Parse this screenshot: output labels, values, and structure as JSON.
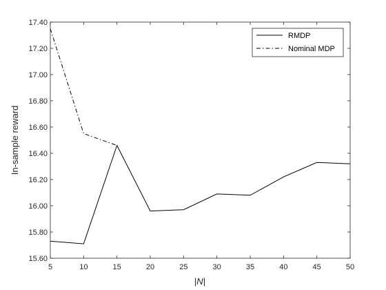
{
  "chart_data": {
    "type": "line",
    "xlabel_italic_part": "N",
    "xlabel_prefix": "|",
    "xlabel_suffix": "|",
    "ylabel": "In-sample reward",
    "x": [
      5,
      10,
      15,
      20,
      25,
      30,
      35,
      40,
      45,
      50
    ],
    "xlim": [
      5,
      50
    ],
    "ylim": [
      15.6,
      17.4
    ],
    "x_ticks": [
      "5",
      "10",
      "15",
      "20",
      "25",
      "30",
      "35",
      "40",
      "45",
      "50"
    ],
    "y_ticks": [
      "15.60",
      "15.80",
      "16.00",
      "16.20",
      "16.40",
      "16.60",
      "16.80",
      "17.00",
      "17.20",
      "17.40"
    ],
    "grid": false,
    "legend_position": "top-right",
    "series": [
      {
        "name": "RMDP",
        "style": "solid",
        "x": [
          5,
          10,
          15,
          20,
          25,
          30,
          35,
          40,
          45,
          50
        ],
        "values": [
          15.73,
          15.71,
          16.46,
          15.96,
          15.97,
          16.09,
          16.08,
          16.22,
          16.33,
          16.32
        ]
      },
      {
        "name": "Nominal MDP",
        "style": "dashdot",
        "x": [
          5,
          10,
          15
        ],
        "values": [
          17.35,
          16.55,
          16.46
        ]
      }
    ],
    "colors": {
      "axis": "#262626",
      "series": "#000000"
    }
  }
}
